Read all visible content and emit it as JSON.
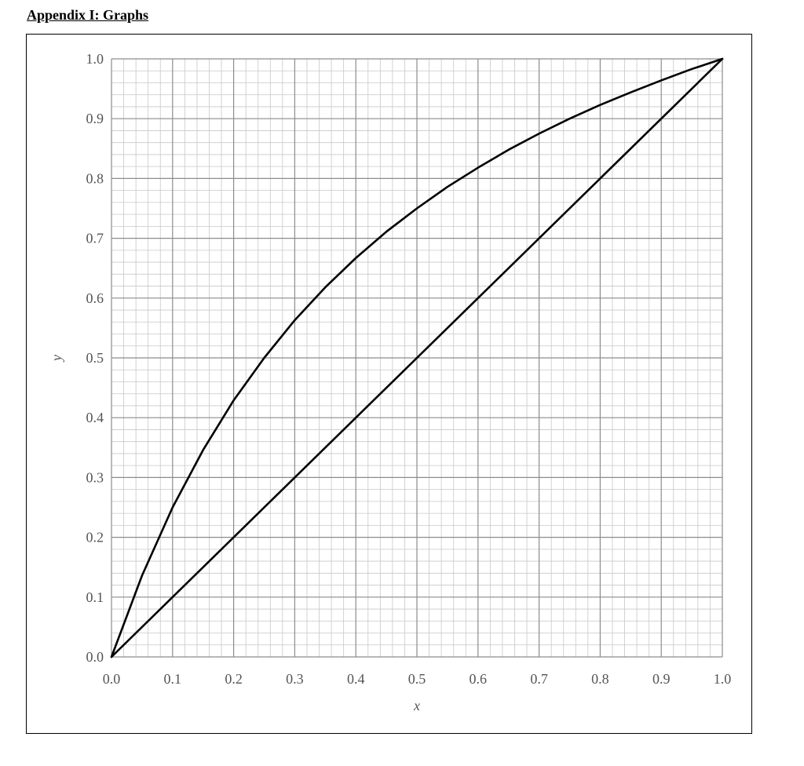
{
  "page": {
    "heading": "Appendix I: Graphs"
  },
  "chart_data": {
    "type": "line",
    "title": "",
    "xlabel": "x",
    "ylabel": "y",
    "xlim": [
      0.0,
      1.0
    ],
    "ylim": [
      0.0,
      1.0
    ],
    "grid": true,
    "major_step": 0.1,
    "minor_step": 0.02,
    "xticks": [
      "0.0",
      "0.1",
      "0.2",
      "0.3",
      "0.4",
      "0.5",
      "0.6",
      "0.7",
      "0.8",
      "0.9",
      "1.0"
    ],
    "yticks": [
      "0.0",
      "0.1",
      "0.2",
      "0.3",
      "0.4",
      "0.5",
      "0.6",
      "0.7",
      "0.8",
      "0.9",
      "1.0"
    ],
    "series": [
      {
        "kind": "equilibrium-curve",
        "color": "#000000",
        "x": [
          0.0,
          0.05,
          0.1,
          0.15,
          0.2,
          0.25,
          0.3,
          0.35,
          0.4,
          0.45,
          0.5,
          0.55,
          0.6,
          0.65,
          0.7,
          0.75,
          0.8,
          0.85,
          0.9,
          0.95,
          1.0
        ],
        "y": [
          0.0,
          0.136,
          0.25,
          0.346,
          0.429,
          0.5,
          0.563,
          0.618,
          0.667,
          0.711,
          0.75,
          0.786,
          0.818,
          0.848,
          0.875,
          0.9,
          0.923,
          0.944,
          0.964,
          0.983,
          1.0
        ]
      },
      {
        "kind": "diagonal-line",
        "color": "#000000",
        "x": [
          0.0,
          1.0
        ],
        "y": [
          0.0,
          1.0
        ]
      }
    ]
  }
}
